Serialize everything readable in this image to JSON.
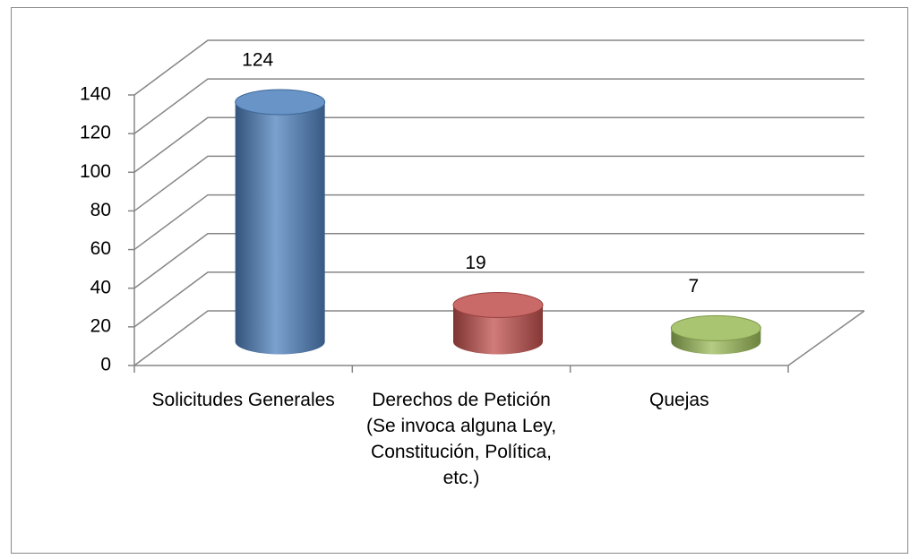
{
  "chart_data": {
    "type": "bar3d",
    "categories": [
      "Solicitudes Generales",
      "Derechos de Petición (Se invoca alguna Ley, Constitución, Política, etc.)",
      "Quejas"
    ],
    "values": [
      124,
      19,
      7
    ],
    "colors": [
      "#4f81bd",
      "#c0504d",
      "#9bbb59"
    ],
    "ylim": [
      0,
      140
    ],
    "yticks": [
      0,
      20,
      40,
      60,
      80,
      100,
      120,
      140
    ],
    "grid": true
  }
}
